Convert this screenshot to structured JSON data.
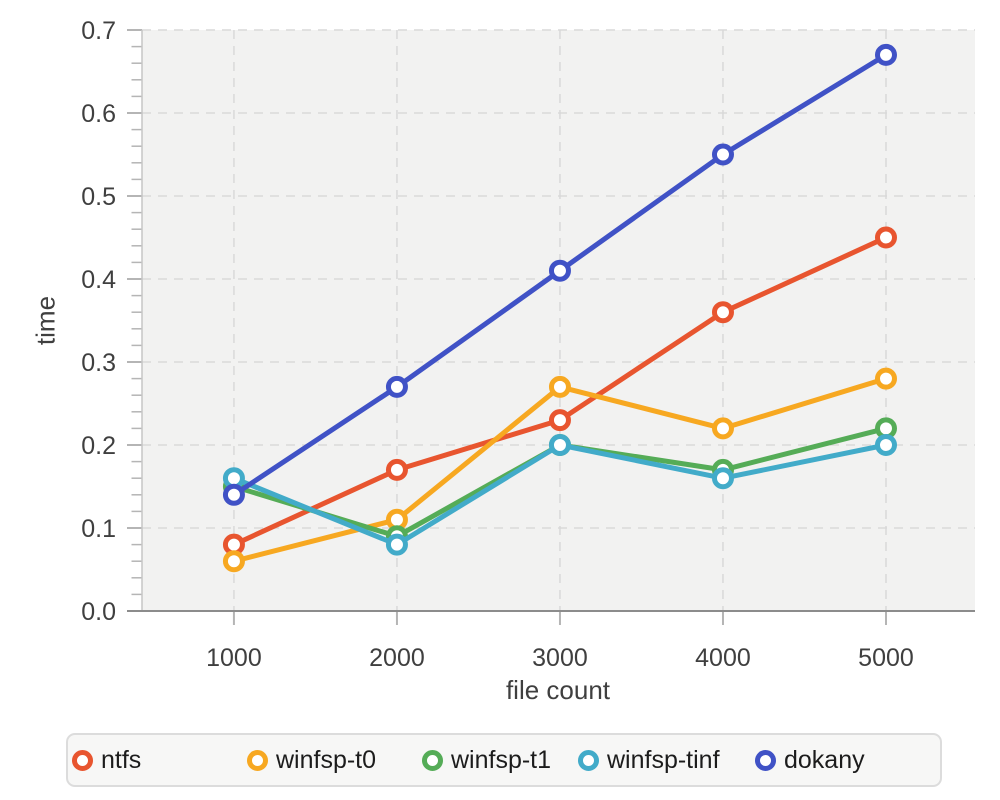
{
  "chart_data": {
    "type": "line",
    "title": "",
    "xlabel": "file count",
    "ylabel": "time",
    "x": [
      1000,
      2000,
      3000,
      4000,
      5000
    ],
    "series": [
      {
        "name": "ntfs",
        "color": "#e8552f",
        "values": [
          0.08,
          0.17,
          0.23,
          0.36,
          0.45
        ]
      },
      {
        "name": "winfsp-t0",
        "color": "#f7a821",
        "values": [
          0.06,
          0.11,
          0.27,
          0.22,
          0.28
        ]
      },
      {
        "name": "winfsp-t1",
        "color": "#55ac57",
        "values": [
          0.15,
          0.09,
          0.2,
          0.17,
          0.22
        ]
      },
      {
        "name": "winfsp-tinf",
        "color": "#42abc9",
        "values": [
          0.16,
          0.08,
          0.2,
          0.16,
          0.2
        ]
      },
      {
        "name": "dokany",
        "color": "#4052c6",
        "values": [
          0.14,
          0.27,
          0.41,
          0.55,
          0.67
        ]
      }
    ],
    "xlim": [
      436,
      5546
    ],
    "ylim": [
      0,
      0.7
    ],
    "xticks": [
      1000,
      2000,
      3000,
      4000,
      5000
    ],
    "xtick_labels": [
      "1000",
      "2000",
      "3000",
      "4000",
      "5000"
    ],
    "yticks": [
      0.0,
      0.1,
      0.2,
      0.3,
      0.4,
      0.5,
      0.6,
      0.7
    ],
    "ytick_labels": [
      "0.0",
      "0.1",
      "0.2",
      "0.3",
      "0.4",
      "0.5",
      "0.6",
      "0.7"
    ],
    "y_minor_step": 0.02,
    "grid": true,
    "marker": "open-circle",
    "legend_position": "bottom"
  },
  "style": {
    "page_bg": "#ffffff",
    "plot_bg": "#f2f2f1",
    "grid_color": "#d9d9d9",
    "y_axis_line": "#c6c6c6",
    "x_axis_line": "#8c8c8c",
    "tick_color": "#b5b5b5",
    "text_color": "#3f3f3f",
    "legend_bg": "#f7f7f6",
    "legend_border": "#dcdcdc",
    "legend_item_widths": [
      175,
      175,
      156,
      177,
      0
    ]
  }
}
